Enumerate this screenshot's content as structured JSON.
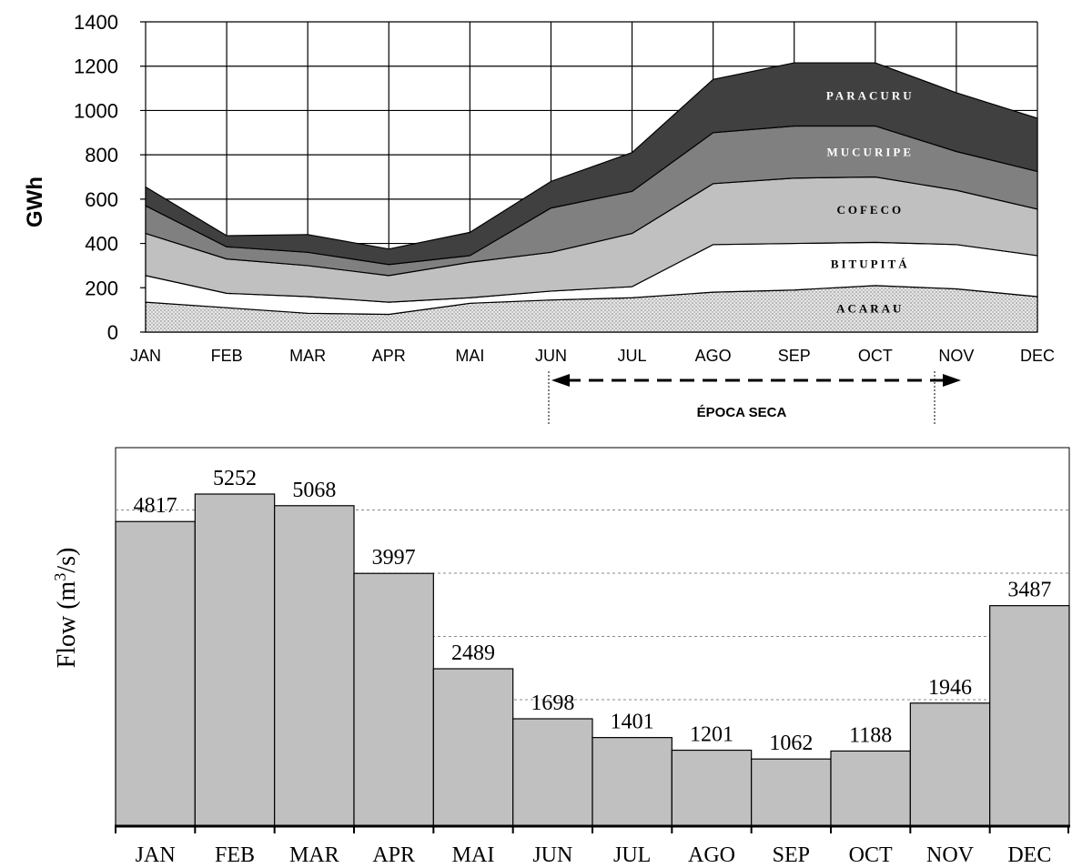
{
  "chart_data": [
    {
      "type": "area",
      "stacked": true,
      "ylabel": "GWh",
      "ylim": [
        0,
        1400
      ],
      "yticks": [
        "0",
        "200",
        "400",
        "600",
        "800",
        "1000",
        "1200",
        "1400"
      ],
      "categories": [
        "JAN",
        "FEB",
        "MAR",
        "APR",
        "MAI",
        "JUN",
        "JUL",
        "AGO",
        "SEP",
        "OCT",
        "NOV",
        "DEC"
      ],
      "grid": true,
      "series": [
        {
          "name": "ACARAU",
          "values": [
            135,
            110,
            85,
            80,
            130,
            145,
            155,
            180,
            190,
            210,
            195,
            160
          ],
          "color": "#dcdcdc",
          "pattern": "dots"
        },
        {
          "name": "BITUPITÁ",
          "values": [
            120,
            65,
            75,
            55,
            25,
            40,
            50,
            215,
            210,
            195,
            200,
            185
          ],
          "color": "#ffffff"
        },
        {
          "name": "COFECO",
          "values": [
            190,
            155,
            140,
            120,
            160,
            175,
            240,
            275,
            295,
            295,
            245,
            210
          ],
          "color": "#c0c0c0"
        },
        {
          "name": "MUCURIPE",
          "values": [
            125,
            55,
            60,
            50,
            30,
            200,
            190,
            230,
            235,
            230,
            175,
            170
          ],
          "color": "#808080"
        },
        {
          "name": "PARACURU",
          "values": [
            85,
            50,
            80,
            70,
            105,
            120,
            175,
            240,
            285,
            285,
            265,
            240
          ],
          "color": "#404040"
        }
      ],
      "annotation": {
        "label": "ÉPOCA SECA",
        "from": "JUN",
        "to": "NOV"
      }
    },
    {
      "type": "bar",
      "ylabel": "Flow (m",
      "ylabel_sup": "3",
      "ylabel_end": "/s)",
      "categories": [
        "JAN",
        "FEB",
        "MAR",
        "APR",
        "MAI",
        "JUN",
        "JUL",
        "AGO",
        "SEP",
        "OCT",
        "NOV",
        "DEC"
      ],
      "values": [
        4817,
        5252,
        5068,
        3997,
        2489,
        1698,
        1401,
        1201,
        1062,
        1188,
        1946,
        3487
      ],
      "data_labels": [
        "4817",
        "5252",
        "5068",
        "3997",
        "2489",
        "1698",
        "1401",
        "1201",
        "1062",
        "1188",
        "1946",
        "3487"
      ],
      "gridlines": [
        2000,
        3000,
        4000,
        5000
      ],
      "ylim": [
        0,
        5800
      ],
      "bar_color": "#c0c0c0"
    }
  ]
}
